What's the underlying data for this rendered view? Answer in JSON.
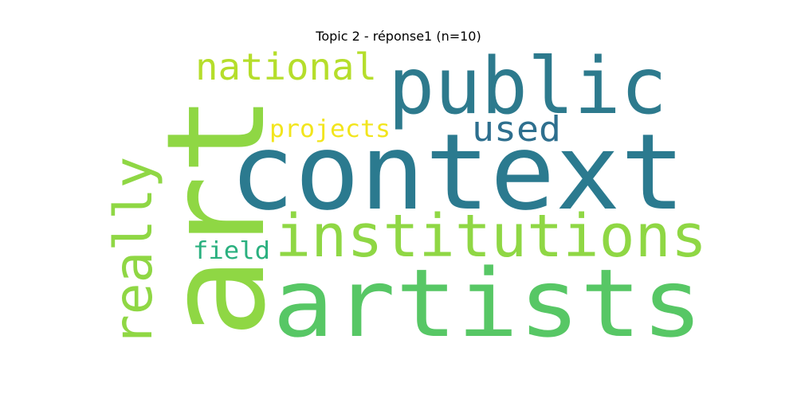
{
  "title": "Topic 2 - réponse1 (n=10)",
  "words": [
    {
      "text": "context",
      "color": "#2b7a8f"
    },
    {
      "text": "public",
      "color": "#2d7a8d"
    },
    {
      "text": "artists",
      "color": "#57c765"
    },
    {
      "text": "art",
      "color": "#8fd744"
    },
    {
      "text": "institutions",
      "color": "#8fd744"
    },
    {
      "text": "really",
      "color": "#8fd744"
    },
    {
      "text": "national",
      "color": "#b5de2b"
    },
    {
      "text": "used",
      "color": "#2e6f8e"
    },
    {
      "text": "projects",
      "color": "#f2e51d"
    },
    {
      "text": "field",
      "color": "#2ab07f"
    }
  ]
}
